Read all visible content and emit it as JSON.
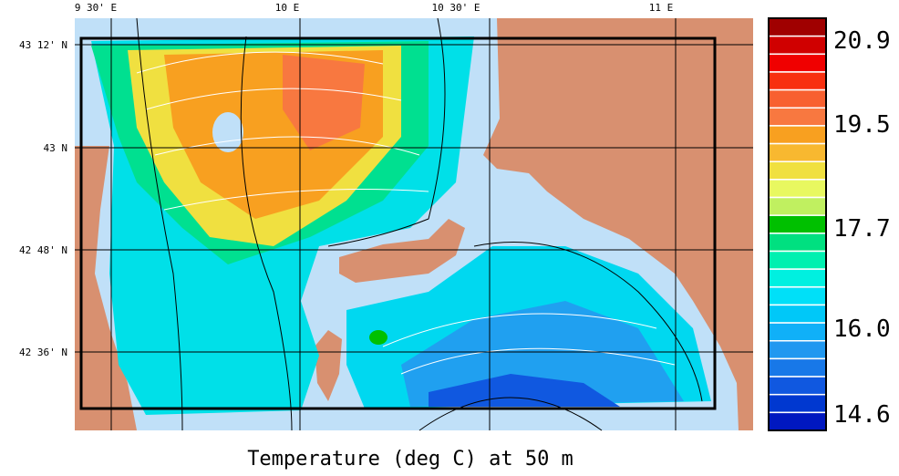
{
  "map": {
    "title": "Temperature (deg C) at 50 m",
    "lon_labels": [
      "9 30' E",
      "10 E",
      "10 30' E",
      "11 E"
    ],
    "lat_labels": [
      "43 12' N",
      "43 N",
      "42 48' N",
      "42 36' N"
    ],
    "colorbar": {
      "labels": [
        "20.9",
        "19.5",
        "17.7",
        "16.0",
        "14.6"
      ],
      "colors": [
        "#a00000",
        "#d00000",
        "#f00000",
        "#f83010",
        "#f86030",
        "#f87840",
        "#f8a020",
        "#f8b830",
        "#f0e040",
        "#e8f860",
        "#c0f060",
        "#00c000",
        "#00e080",
        "#00f0b0",
        "#00f0e0",
        "#00e0f8",
        "#00c8f8",
        "#10b0f8",
        "#2098f0",
        "#1878e8",
        "#1058e0",
        "#0038d0",
        "#0018c0"
      ]
    }
  }
}
